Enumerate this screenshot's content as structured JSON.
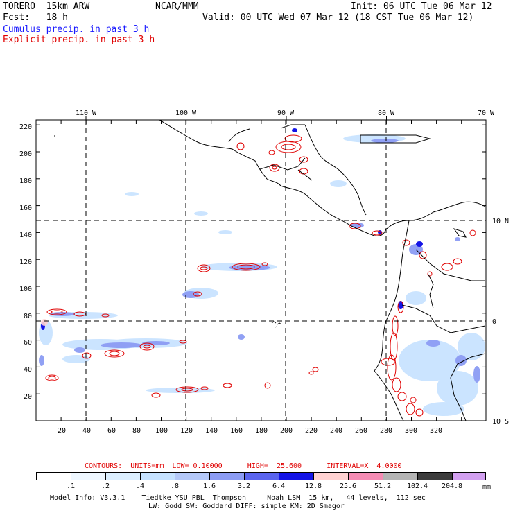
{
  "header": {
    "model": "TORERO  15km ARW",
    "center": "NCAR/MMM",
    "init": "Init: 06 UTC Tue 06 Mar 12",
    "fcst": "Fcst:   18 h",
    "valid": "Valid: 00 UTC Wed 07 Mar 12 (18 CST Tue 06 Mar 12)",
    "cumulus_label": "Cumulus precip. in past 3 h",
    "explicit_label": "Explicit precip. in past 3 h",
    "cumulus_color": "#1a1aff",
    "explicit_color": "#e00000"
  },
  "map": {
    "top_lon_labels": [
      "110 W",
      "100 W",
      "90 W",
      "80 W",
      "70 W"
    ],
    "right_lat_labels": [
      "10 N",
      "0",
      "10 S"
    ],
    "x_ticks": [
      "20",
      "40",
      "60",
      "80",
      "100",
      "120",
      "140",
      "160",
      "180",
      "200",
      "220",
      "240",
      "260",
      "280",
      "300",
      "320"
    ],
    "y_ticks": [
      "20",
      "40",
      "60",
      "80",
      "100",
      "120",
      "140",
      "160",
      "180",
      "200",
      "220"
    ]
  },
  "contour_info": "CONTOURS:  UNITS=mm  LOW= 0.10000      HIGH=  25.600      INTERVAL=X  4.0000",
  "legend": {
    "units": "mm",
    "labels": [
      ".1",
      ".2",
      ".4",
      ".8",
      "1.6",
      "3.2",
      "6.4",
      "12.8",
      "25.6",
      "51.2",
      "102.4",
      "204.8"
    ],
    "colors": [
      "#ffffff",
      "#eef7ff",
      "#dcefff",
      "#c6e2ff",
      "#b4c8f8",
      "#8c9cf4",
      "#5a64ee",
      "#1414e6",
      "#ffd2d2",
      "#f58cb4",
      "#b4b4b4",
      "#3c3c3c",
      "#d2a0f0"
    ]
  },
  "footer": {
    "line1": "Model Info: V3.3.1    Tiedtke YSU PBL  Thompson     Noah LSM  15 km,   44 levels,  112 sec",
    "line2": "LW: Godd SW: Goddard DIFF: simple KM: 2D Smagor"
  }
}
